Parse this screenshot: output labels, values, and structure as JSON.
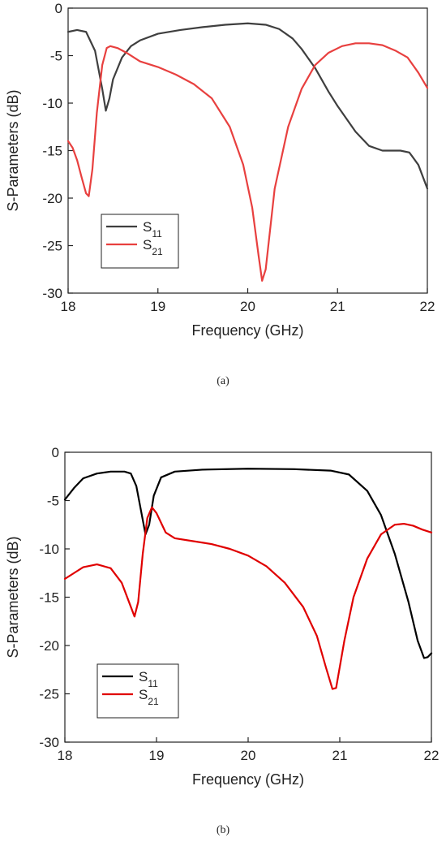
{
  "charts": [
    {
      "caption": "(a)",
      "chart_data": {
        "type": "line",
        "xlabel": "Frequency (GHz)",
        "ylabel": "S-Parameters (dB)",
        "xlim": [
          18,
          22
        ],
        "ylim": [
          -30,
          0
        ],
        "xticks": [
          "18",
          "19",
          "20",
          "21",
          "22"
        ],
        "yticks": [
          "0",
          "-5",
          "-10",
          "-15",
          "-20",
          "-25",
          "-30"
        ],
        "grid": false,
        "legend_position": "bottom-left",
        "series": [
          {
            "name": "S11",
            "label_main": "S",
            "label_sub": "11",
            "color": "#3f3f3f",
            "points": [
              [
                18.0,
                -2.5
              ],
              [
                18.1,
                -2.3
              ],
              [
                18.2,
                -2.5
              ],
              [
                18.3,
                -4.5
              ],
              [
                18.38,
                -8.5
              ],
              [
                18.42,
                -10.8
              ],
              [
                18.46,
                -9.5
              ],
              [
                18.5,
                -7.5
              ],
              [
                18.6,
                -5.2
              ],
              [
                18.7,
                -4.0
              ],
              [
                18.8,
                -3.4
              ],
              [
                19.0,
                -2.7
              ],
              [
                19.25,
                -2.3
              ],
              [
                19.5,
                -2.0
              ],
              [
                19.75,
                -1.75
              ],
              [
                20.0,
                -1.6
              ],
              [
                20.2,
                -1.75
              ],
              [
                20.35,
                -2.2
              ],
              [
                20.5,
                -3.2
              ],
              [
                20.6,
                -4.3
              ],
              [
                20.75,
                -6.3
              ],
              [
                20.9,
                -8.8
              ],
              [
                21.0,
                -10.3
              ],
              [
                21.2,
                -13.0
              ],
              [
                21.35,
                -14.5
              ],
              [
                21.5,
                -15.0
              ],
              [
                21.7,
                -15.0
              ],
              [
                21.8,
                -15.2
              ],
              [
                21.9,
                -16.5
              ],
              [
                22.0,
                -19.0
              ]
            ]
          },
          {
            "name": "S21",
            "label_main": "S",
            "label_sub": "21",
            "color": "#e8403f",
            "points": [
              [
                18.0,
                -14.0
              ],
              [
                18.05,
                -14.7
              ],
              [
                18.1,
                -16.0
              ],
              [
                18.15,
                -17.8
              ],
              [
                18.2,
                -19.5
              ],
              [
                18.23,
                -19.8
              ],
              [
                18.27,
                -17.0
              ],
              [
                18.32,
                -11.0
              ],
              [
                18.38,
                -6.0
              ],
              [
                18.43,
                -4.2
              ],
              [
                18.47,
                -4.0
              ],
              [
                18.55,
                -4.2
              ],
              [
                18.65,
                -4.7
              ],
              [
                18.8,
                -5.6
              ],
              [
                19.0,
                -6.2
              ],
              [
                19.2,
                -7.0
              ],
              [
                19.4,
                -8.0
              ],
              [
                19.6,
                -9.5
              ],
              [
                19.8,
                -12.5
              ],
              [
                19.95,
                -16.5
              ],
              [
                20.05,
                -21.0
              ],
              [
                20.12,
                -26.0
              ],
              [
                20.16,
                -28.7
              ],
              [
                20.2,
                -27.5
              ],
              [
                20.3,
                -19.0
              ],
              [
                20.45,
                -12.5
              ],
              [
                20.6,
                -8.5
              ],
              [
                20.75,
                -6.0
              ],
              [
                20.9,
                -4.7
              ],
              [
                21.05,
                -4.0
              ],
              [
                21.2,
                -3.7
              ],
              [
                21.35,
                -3.7
              ],
              [
                21.5,
                -3.9
              ],
              [
                21.65,
                -4.5
              ],
              [
                21.78,
                -5.2
              ],
              [
                21.9,
                -6.8
              ],
              [
                22.0,
                -8.4
              ]
            ]
          }
        ]
      }
    },
    {
      "caption": "(b)",
      "chart_data": {
        "type": "line",
        "xlabel": "Frequency (GHz)",
        "ylabel": "S-Parameters (dB)",
        "xlim": [
          18,
          22
        ],
        "ylim": [
          -30,
          0
        ],
        "xticks": [
          "18",
          "19",
          "20",
          "21",
          "22"
        ],
        "yticks": [
          "0",
          "-5",
          "-10",
          "-15",
          "-20",
          "-25",
          "-30"
        ],
        "grid": false,
        "legend_position": "bottom-left",
        "series": [
          {
            "name": "S11",
            "label_main": "S",
            "label_sub": "11",
            "color": "#000000",
            "points": [
              [
                18.0,
                -4.9
              ],
              [
                18.1,
                -3.7
              ],
              [
                18.2,
                -2.7
              ],
              [
                18.35,
                -2.2
              ],
              [
                18.5,
                -2.0
              ],
              [
                18.65,
                -2.0
              ],
              [
                18.72,
                -2.2
              ],
              [
                18.78,
                -3.5
              ],
              [
                18.84,
                -6.5
              ],
              [
                18.88,
                -8.5
              ],
              [
                18.92,
                -7.5
              ],
              [
                18.97,
                -4.5
              ],
              [
                19.05,
                -2.6
              ],
              [
                19.2,
                -2.0
              ],
              [
                19.5,
                -1.8
              ],
              [
                20.0,
                -1.7
              ],
              [
                20.5,
                -1.75
              ],
              [
                20.9,
                -1.9
              ],
              [
                21.1,
                -2.3
              ],
              [
                21.3,
                -4.0
              ],
              [
                21.45,
                -6.5
              ],
              [
                21.6,
                -10.5
              ],
              [
                21.75,
                -15.5
              ],
              [
                21.85,
                -19.5
              ],
              [
                21.92,
                -21.3
              ],
              [
                21.96,
                -21.2
              ],
              [
                22.0,
                -20.8
              ]
            ]
          },
          {
            "name": "S21",
            "label_main": "S",
            "label_sub": "21",
            "color": "#e00000",
            "points": [
              [
                18.0,
                -13.1
              ],
              [
                18.1,
                -12.5
              ],
              [
                18.2,
                -11.9
              ],
              [
                18.35,
                -11.6
              ],
              [
                18.5,
                -12.0
              ],
              [
                18.62,
                -13.5
              ],
              [
                18.7,
                -15.5
              ],
              [
                18.76,
                -17.0
              ],
              [
                18.8,
                -15.5
              ],
              [
                18.85,
                -10.5
              ],
              [
                18.9,
                -6.8
              ],
              [
                18.95,
                -5.7
              ],
              [
                19.0,
                -6.3
              ],
              [
                19.1,
                -8.3
              ],
              [
                19.2,
                -8.9
              ],
              [
                19.4,
                -9.2
              ],
              [
                19.6,
                -9.5
              ],
              [
                19.8,
                -10.0
              ],
              [
                20.0,
                -10.7
              ],
              [
                20.2,
                -11.8
              ],
              [
                20.4,
                -13.5
              ],
              [
                20.6,
                -16.0
              ],
              [
                20.75,
                -19.0
              ],
              [
                20.85,
                -22.3
              ],
              [
                20.92,
                -24.5
              ],
              [
                20.96,
                -24.4
              ],
              [
                21.05,
                -19.5
              ],
              [
                21.15,
                -15.0
              ],
              [
                21.3,
                -11.0
              ],
              [
                21.45,
                -8.5
              ],
              [
                21.6,
                -7.5
              ],
              [
                21.7,
                -7.4
              ],
              [
                21.8,
                -7.6
              ],
              [
                21.9,
                -8.0
              ],
              [
                22.0,
                -8.3
              ]
            ]
          }
        ]
      }
    }
  ]
}
